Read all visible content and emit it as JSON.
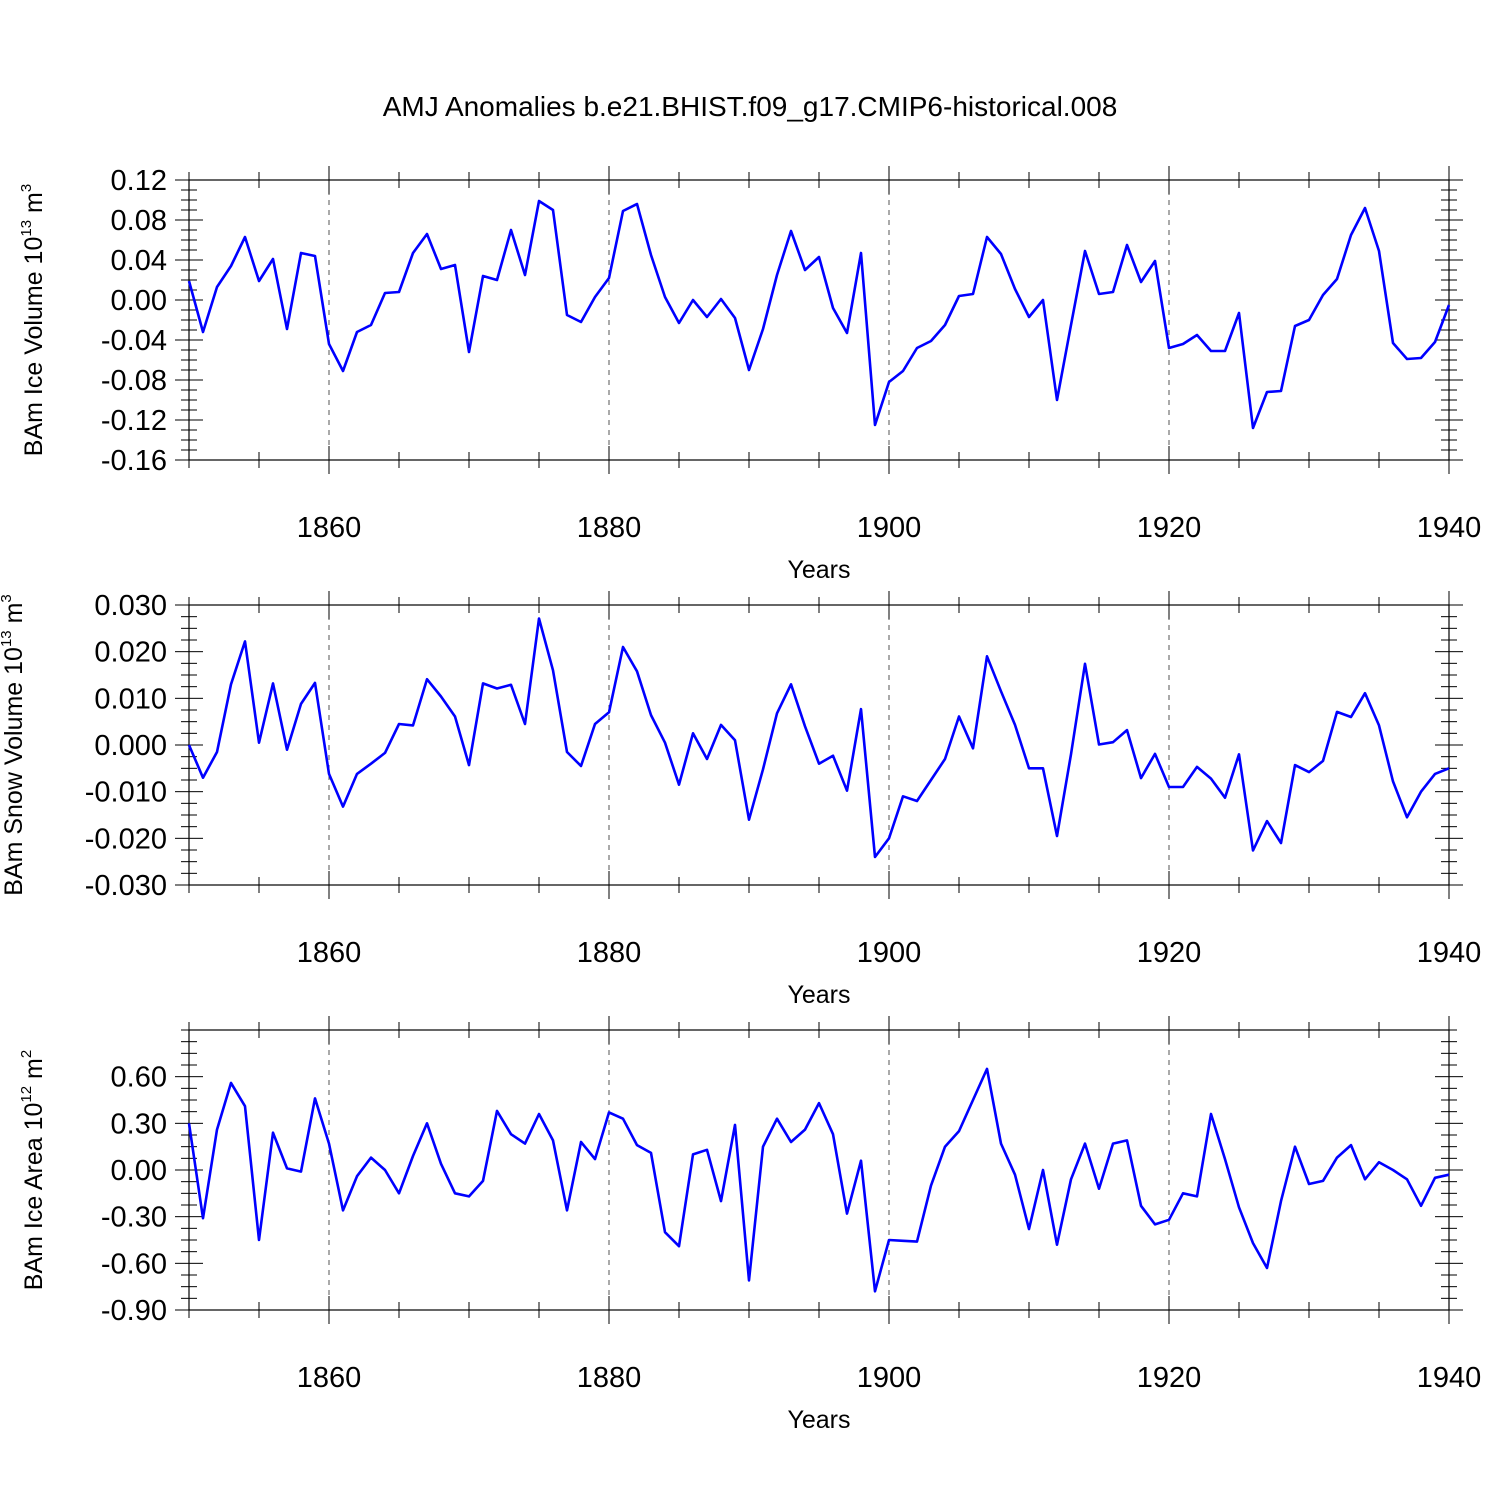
{
  "figure": {
    "title": "AMJ Anomalies b.e21.BHIST.f09_g17.CMIP6-historical.008"
  },
  "chart_data": [
    {
      "type": "line",
      "title": "",
      "xlabel": "Years",
      "ylabel": {
        "main": "BAm Ice Volume 10",
        "exp": "13",
        "unit": " m",
        "unit_exp": "3"
      },
      "xlim": [
        1850,
        1940
      ],
      "ylim": [
        -0.16,
        0.12
      ],
      "x_ticks": [
        1860,
        1880,
        1900,
        1920,
        1940
      ],
      "x_tick_labels": [
        "1860",
        "1880",
        "1900",
        "1920",
        "1940"
      ],
      "y_ticks": [
        -0.16,
        -0.12,
        -0.08,
        -0.04,
        0.0,
        0.04,
        0.08,
        0.12
      ],
      "y_tick_labels": [
        "-0.16",
        "-0.12",
        "-0.08",
        "-0.04",
        "0.00",
        "0.04",
        "0.08",
        "0.12"
      ],
      "grid": "vertical dashed at major x ticks",
      "color": "#0000ff",
      "x_start": 1850,
      "values": [
        0.019,
        -0.032,
        0.013,
        0.034,
        0.063,
        0.019,
        0.041,
        -0.029,
        0.047,
        0.044,
        -0.044,
        -0.071,
        -0.032,
        -0.025,
        0.007,
        0.008,
        0.047,
        0.066,
        0.031,
        0.035,
        -0.052,
        0.024,
        0.02,
        0.07,
        0.025,
        0.099,
        0.09,
        -0.015,
        -0.022,
        0.003,
        0.022,
        0.089,
        0.096,
        0.045,
        0.003,
        -0.023,
        0.0,
        -0.017,
        0.001,
        -0.018,
        -0.07,
        -0.029,
        0.025,
        0.069,
        0.03,
        0.043,
        -0.008,
        -0.033,
        0.047,
        -0.125,
        -0.082,
        -0.071,
        -0.048,
        -0.041,
        -0.025,
        0.004,
        0.006,
        0.063,
        0.046,
        0.011,
        -0.017,
        0.0,
        -0.1,
        -0.025,
        0.049,
        0.006,
        0.008,
        0.055,
        0.018,
        0.039,
        -0.048,
        -0.044,
        -0.035,
        -0.051,
        -0.051,
        -0.013,
        -0.128,
        -0.092,
        -0.091,
        -0.026,
        -0.02,
        0.005,
        0.021,
        0.065,
        0.092,
        0.049,
        -0.043,
        -0.059,
        -0.058,
        -0.042,
        -0.005
      ]
    },
    {
      "type": "line",
      "title": "",
      "xlabel": "Years",
      "ylabel": {
        "main": "BAm Snow Volume 10",
        "exp": "13",
        "unit": " m",
        "unit_exp": "3"
      },
      "xlim": [
        1850,
        1940
      ],
      "ylim": [
        -0.03,
        0.03
      ],
      "x_ticks": [
        1860,
        1880,
        1900,
        1920,
        1940
      ],
      "x_tick_labels": [
        "1860",
        "1880",
        "1900",
        "1920",
        "1940"
      ],
      "y_ticks": [
        -0.03,
        -0.02,
        -0.01,
        0.0,
        0.01,
        0.02,
        0.03
      ],
      "y_tick_labels": [
        "-0.030",
        "-0.020",
        "-0.010",
        "0.000",
        "0.010",
        "0.020",
        "0.030"
      ],
      "grid": "vertical dashed at major x ticks",
      "color": "#0000ff",
      "x_start": 1850,
      "values": [
        0.0,
        -0.007,
        -0.0015,
        0.013,
        0.0222,
        0.0005,
        0.0132,
        -0.001,
        0.0088,
        0.0133,
        -0.0062,
        -0.0132,
        -0.0062,
        -0.004,
        -0.0017,
        0.0045,
        0.0042,
        0.0141,
        0.0104,
        0.0061,
        -0.0043,
        0.0132,
        0.0121,
        0.0129,
        0.0045,
        0.0271,
        0.016,
        -0.0015,
        -0.0045,
        0.0045,
        0.007,
        0.021,
        0.0158,
        0.0064,
        0.0005,
        -0.0085,
        0.0025,
        -0.003,
        0.0043,
        0.001,
        -0.016,
        -0.0052,
        0.0068,
        0.013,
        0.004,
        -0.004,
        -0.0023,
        -0.0098,
        0.0077,
        -0.024,
        -0.02,
        -0.011,
        -0.012,
        -0.0075,
        -0.003,
        0.0061,
        -0.0007,
        0.019,
        0.0115,
        0.0043,
        -0.005,
        -0.005,
        -0.0195,
        -0.002,
        0.0174,
        0.0001,
        0.0006,
        0.0032,
        -0.0071,
        -0.0019,
        -0.009,
        -0.009,
        -0.0047,
        -0.0072,
        -0.0113,
        -0.002,
        -0.0226,
        -0.0163,
        -0.021,
        -0.0043,
        -0.0058,
        -0.0034,
        0.0071,
        0.006,
        0.0111,
        0.0042,
        -0.0078,
        -0.0155,
        -0.01,
        -0.0062,
        -0.005
      ]
    },
    {
      "type": "line",
      "title": "",
      "xlabel": "Years",
      "ylabel": {
        "main": "BAm Ice Area 10",
        "exp": "12",
        "unit": " m",
        "unit_exp": "2"
      },
      "xlim": [
        1850,
        1940
      ],
      "ylim": [
        -0.9,
        0.9
      ],
      "x_ticks": [
        1860,
        1880,
        1900,
        1920,
        1940
      ],
      "x_tick_labels": [
        "1860",
        "1880",
        "1900",
        "1920",
        "1940"
      ],
      "y_ticks": [
        -0.9,
        -0.6,
        -0.3,
        0.0,
        0.3,
        0.6
      ],
      "y_tick_labels": [
        "-0.90",
        "-0.60",
        "-0.30",
        "0.00",
        "0.30",
        "0.60"
      ],
      "grid": "vertical dashed at major x ticks",
      "color": "#0000ff",
      "x_start": 1850,
      "values": [
        0.3,
        -0.31,
        0.26,
        0.56,
        0.41,
        -0.45,
        0.24,
        0.01,
        -0.01,
        0.46,
        0.17,
        -0.26,
        -0.04,
        0.08,
        0.0,
        -0.15,
        0.09,
        0.3,
        0.04,
        -0.15,
        -0.17,
        -0.07,
        0.38,
        0.23,
        0.17,
        0.36,
        0.19,
        -0.26,
        0.18,
        0.07,
        0.37,
        0.33,
        0.16,
        0.11,
        -0.4,
        -0.49,
        0.1,
        0.13,
        -0.2,
        0.29,
        -0.71,
        0.15,
        0.33,
        0.18,
        0.26,
        0.43,
        0.23,
        -0.28,
        0.06,
        -0.78,
        -0.45,
        -0.455,
        -0.46,
        -0.1,
        0.15,
        0.25,
        0.45,
        0.65,
        0.17,
        -0.03,
        -0.38,
        0.0,
        -0.48,
        -0.06,
        0.17,
        -0.12,
        0.17,
        0.19,
        -0.23,
        -0.35,
        -0.32,
        -0.15,
        -0.17,
        0.36,
        0.07,
        -0.24,
        -0.47,
        -0.63,
        -0.2,
        0.15,
        -0.09,
        -0.07,
        0.08,
        0.16,
        -0.06,
        0.05,
        0.0,
        -0.06,
        -0.23,
        -0.05,
        -0.03
      ]
    }
  ]
}
